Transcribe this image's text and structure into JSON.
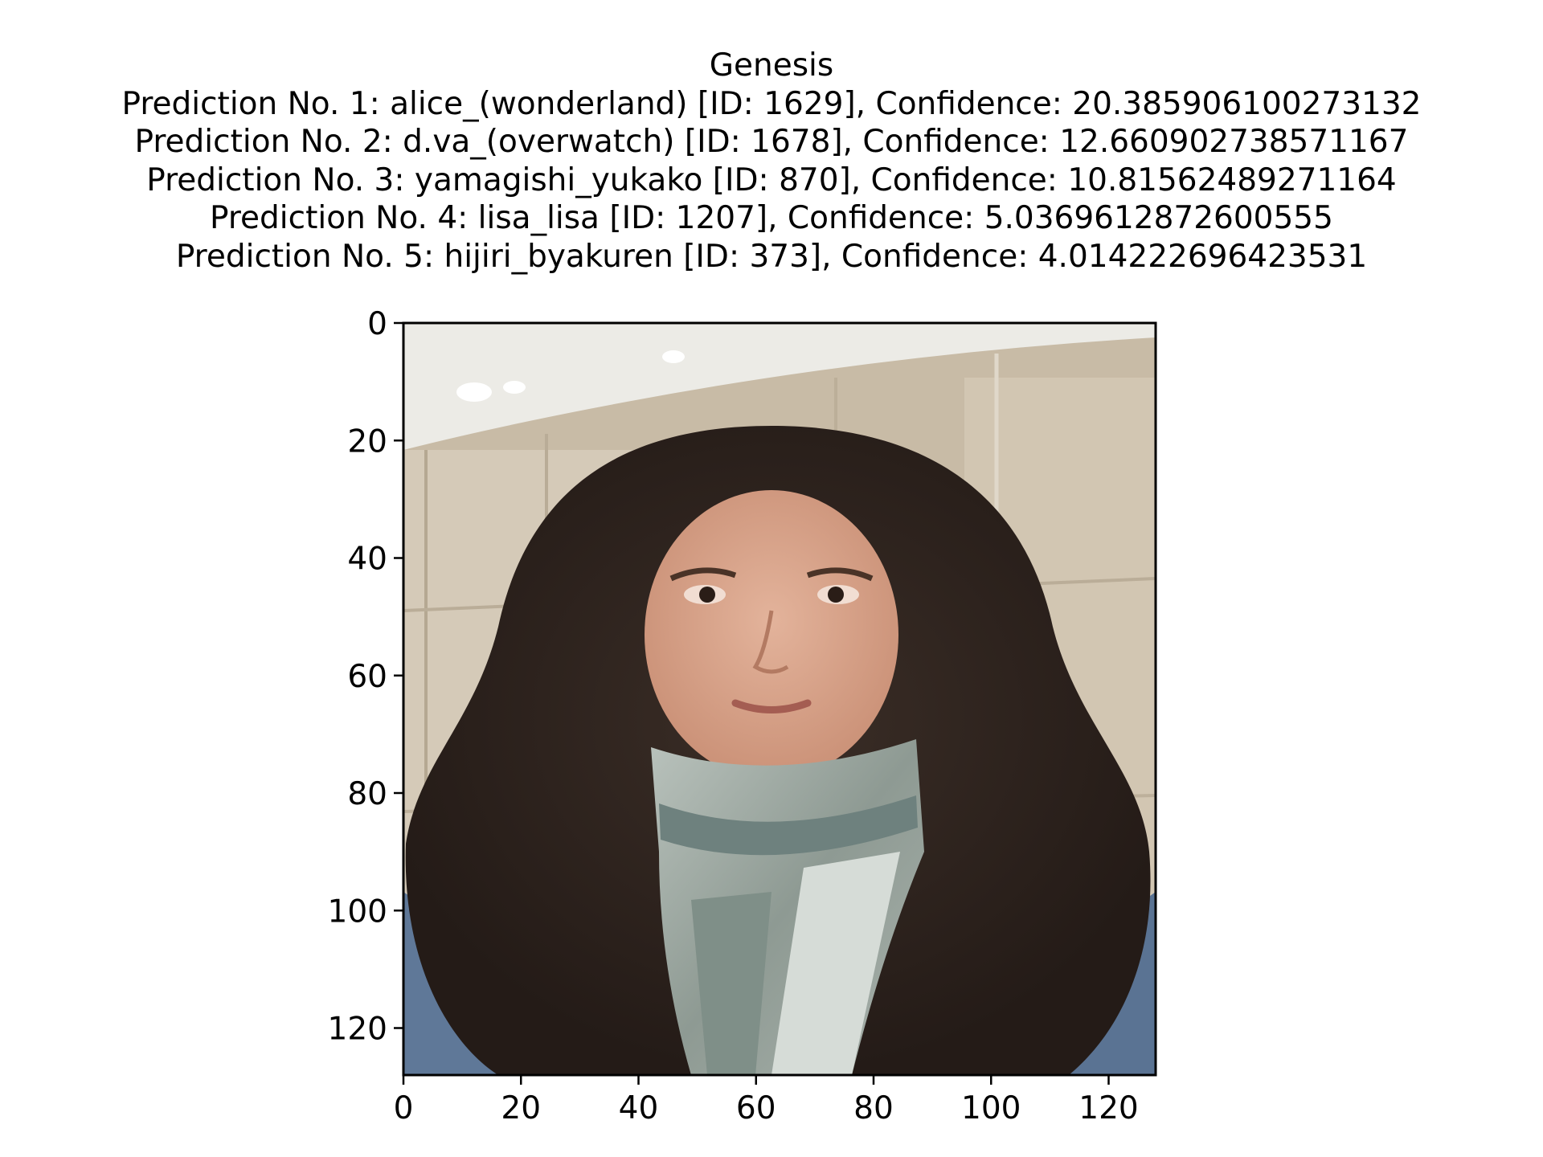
{
  "chart_data": {
    "type": "image",
    "title": "Genesis",
    "subtitle_lines": [
      "Prediction No. 1: alice_(wonderland) [ID: 1629], Confidence: 20.385906100273132",
      "Prediction No. 2: d.va_(overwatch) [ID: 1678], Confidence: 12.660902738571167",
      "Prediction No. 3: yamagishi_yukako [ID: 870], Confidence: 10.81562489271164",
      "Prediction No. 4: lisa_lisa [ID: 1207], Confidence: 5.0369612872600555",
      "Prediction No. 5: hijiri_byakuren [ID: 373], Confidence: 4.014222696423531"
    ],
    "predictions": [
      {
        "rank": 1,
        "label": "alice_(wonderland)",
        "id": 1629,
        "confidence": 20.385906100273132
      },
      {
        "rank": 2,
        "label": "d.va_(overwatch)",
        "id": 1678,
        "confidence": 12.660902738571167
      },
      {
        "rank": 3,
        "label": "yamagishi_yukako",
        "id": 870,
        "confidence": 10.81562489271164
      },
      {
        "rank": 4,
        "label": "lisa_lisa",
        "id": 1207,
        "confidence": 5.0369612872600555
      },
      {
        "rank": 5,
        "label": "hijiri_byakuren",
        "id": 373,
        "confidence": 4.014222696423531
      }
    ],
    "image_width": 128,
    "image_height": 128,
    "xlim": [
      0,
      128
    ],
    "ylim": [
      128,
      0
    ],
    "xticks": [
      0,
      20,
      40,
      60,
      80,
      100,
      120
    ],
    "yticks": [
      0,
      20,
      40,
      60,
      80,
      100,
      120
    ],
    "xtick_labels": [
      "0",
      "20",
      "40",
      "60",
      "80",
      "100",
      "120"
    ],
    "ytick_labels": [
      "0",
      "20",
      "40",
      "60",
      "80",
      "100",
      "120"
    ],
    "grid": false,
    "legend": "none",
    "image_content": "photograph of a person with long dark curly hair and a grey-teal scarf in front of a beige tiled wall",
    "colors": {
      "ceiling": "#ecebe6",
      "wall": "#c8bba6",
      "wall_light": "#d7ccba",
      "hair": "#2e241f",
      "skin": "#d8a48a",
      "scarf": "#9aa59e",
      "scarf_dark": "#5f7170",
      "jacket": "#5f7898"
    }
  }
}
